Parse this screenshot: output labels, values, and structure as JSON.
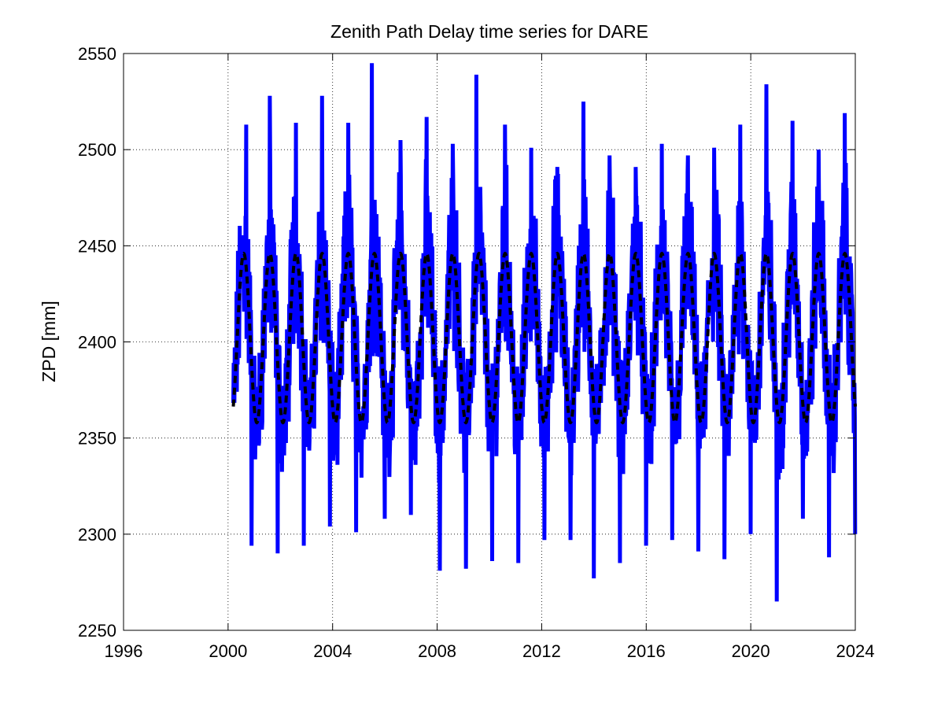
{
  "chart_data": {
    "type": "line",
    "title": "Zenith Path Delay time series for DARE",
    "xlabel": "",
    "ylabel": "ZPD [mm]",
    "xlim": [
      1996,
      2024
    ],
    "ylim": [
      2250,
      2550
    ],
    "x_ticks": [
      "1996",
      "2000",
      "2004",
      "2008",
      "2012",
      "2016",
      "2020",
      "2024"
    ],
    "y_ticks": [
      "2250",
      "2300",
      "2350",
      "2400",
      "2450",
      "2500",
      "2550"
    ],
    "grid": true,
    "series": [
      {
        "kind": "observed",
        "color": "#0000ff",
        "style": "solid",
        "x_start": 2000.2,
        "x_end": 2024.0,
        "mean": 2402,
        "annual_amplitude": 44,
        "max": 2545,
        "max_at": 2005.5,
        "min": 2265,
        "min_at": 2021.0,
        "peaks": [
          [
            2000.7,
            2513
          ],
          [
            2001.6,
            2528
          ],
          [
            2002.6,
            2514
          ],
          [
            2003.6,
            2528
          ],
          [
            2004.6,
            2514
          ],
          [
            2005.5,
            2545
          ],
          [
            2006.6,
            2505
          ],
          [
            2007.6,
            2517
          ],
          [
            2008.6,
            2503
          ],
          [
            2009.5,
            2539
          ],
          [
            2010.6,
            2513
          ],
          [
            2011.6,
            2501
          ],
          [
            2012.6,
            2491
          ],
          [
            2013.6,
            2525
          ],
          [
            2014.6,
            2497
          ],
          [
            2015.6,
            2491
          ],
          [
            2016.6,
            2503
          ],
          [
            2017.6,
            2497
          ],
          [
            2018.6,
            2501
          ],
          [
            2019.6,
            2513
          ],
          [
            2020.6,
            2534
          ],
          [
            2021.6,
            2515
          ],
          [
            2022.6,
            2500
          ],
          [
            2023.6,
            2519
          ]
        ],
        "troughs": [
          [
            2000.9,
            2294
          ],
          [
            2001.9,
            2290
          ],
          [
            2002.9,
            2294
          ],
          [
            2003.9,
            2304
          ],
          [
            2004.9,
            2301
          ],
          [
            2006.0,
            2308
          ],
          [
            2007.0,
            2310
          ],
          [
            2008.1,
            2281
          ],
          [
            2009.1,
            2282
          ],
          [
            2010.1,
            2286
          ],
          [
            2011.1,
            2285
          ],
          [
            2012.1,
            2297
          ],
          [
            2013.1,
            2297
          ],
          [
            2014.0,
            2277
          ],
          [
            2015.0,
            2285
          ],
          [
            2016.0,
            2294
          ],
          [
            2017.0,
            2297
          ],
          [
            2018.0,
            2291
          ],
          [
            2019.0,
            2287
          ],
          [
            2020.0,
            2300
          ],
          [
            2021.0,
            2265
          ],
          [
            2022.0,
            2308
          ],
          [
            2023.0,
            2288
          ],
          [
            2024.0,
            2300
          ]
        ]
      },
      {
        "kind": "seasonal model",
        "color": "#000000",
        "style": "dashed",
        "x_start": 2000.2,
        "x_end": 2024.0,
        "mean": 2402,
        "amplitude": 44,
        "period_years": 1,
        "peak_phase": 0.6
      }
    ]
  }
}
